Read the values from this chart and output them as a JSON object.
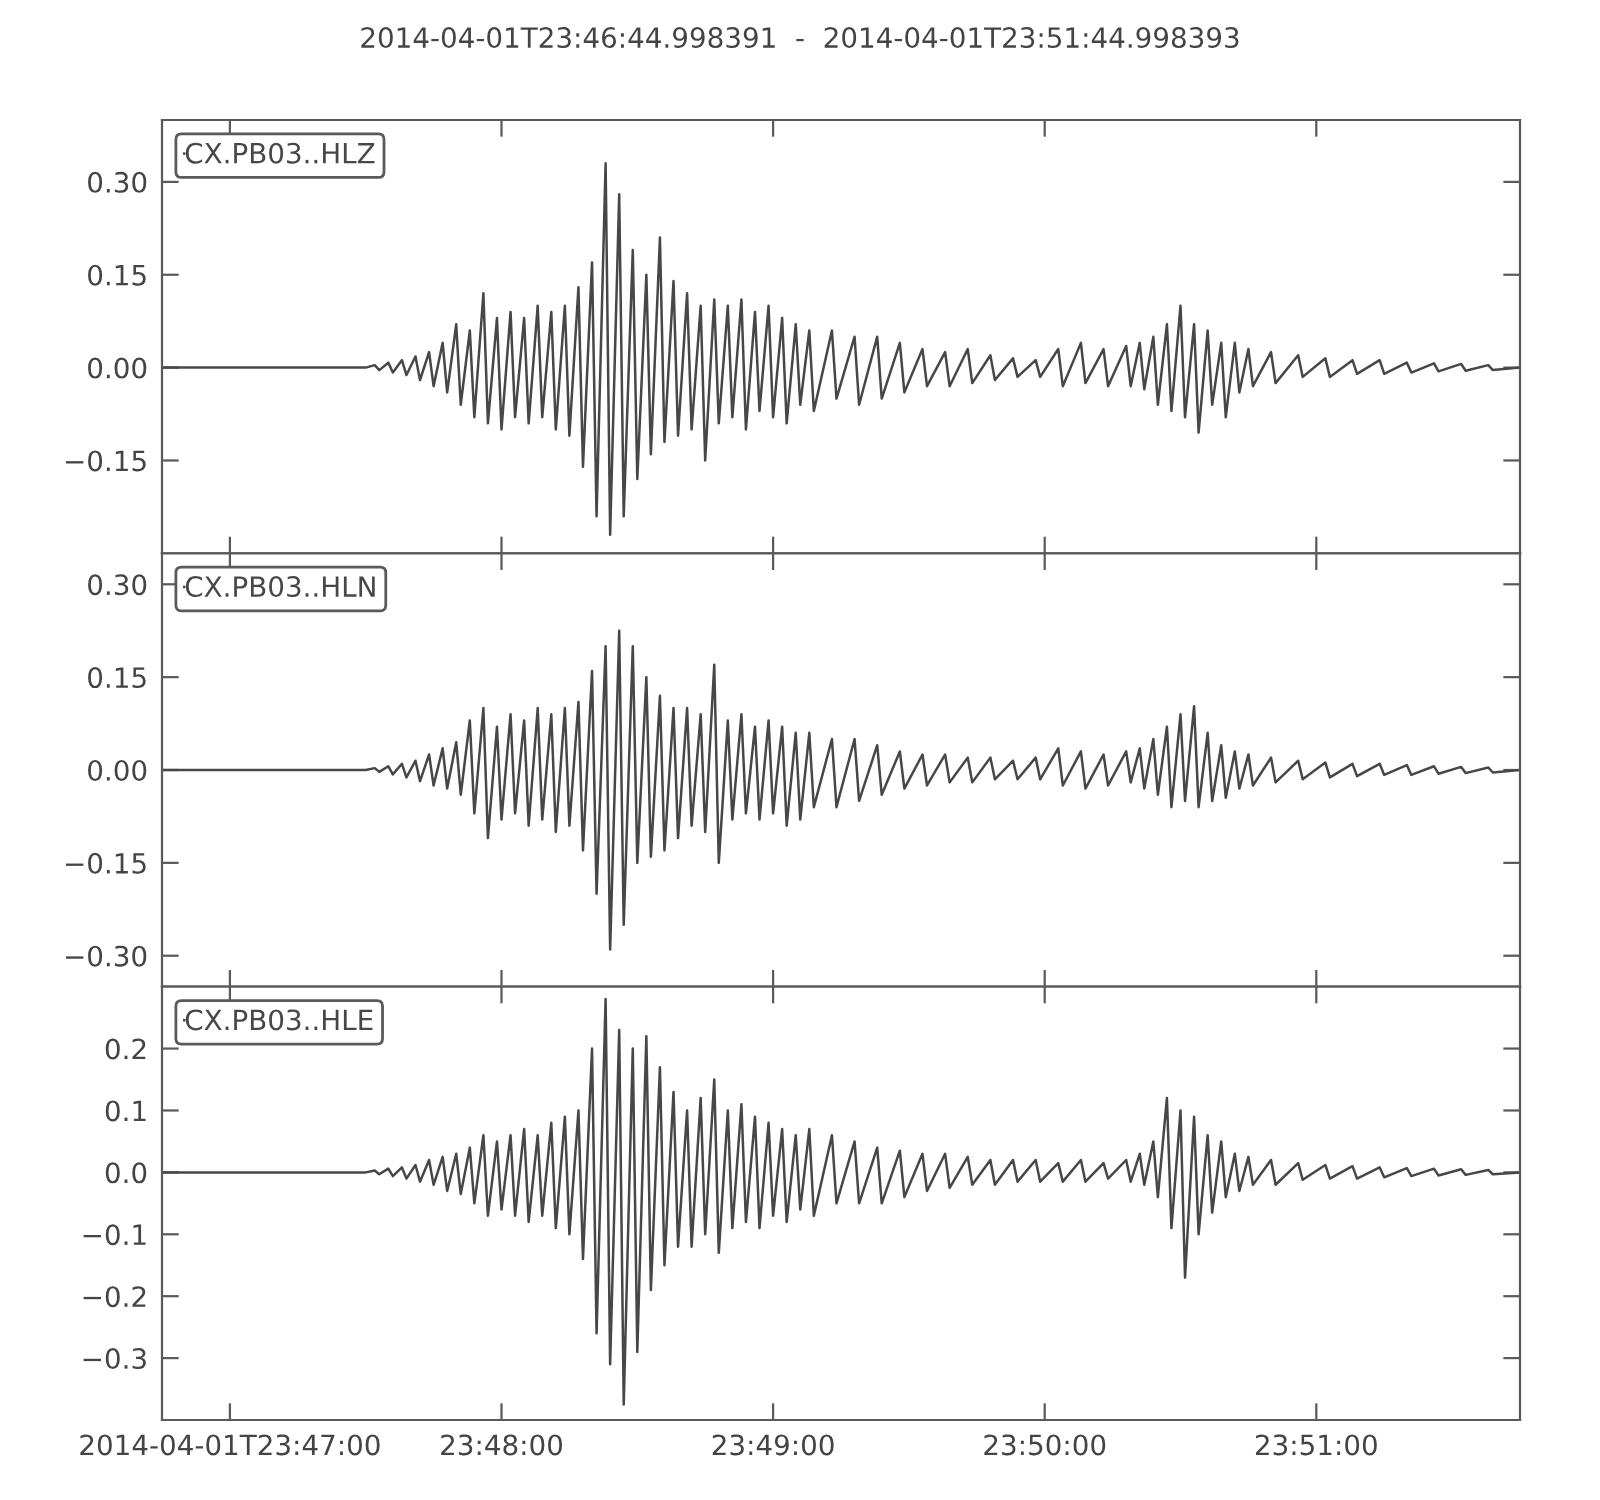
{
  "chart_data": [
    {
      "type": "line",
      "title": "2014-04-01T23:46:44.998391  -  2014-04-01T23:51:44.998393",
      "x": [
        "2014-04-01T23:46:45",
        "2014-04-01T23:47:30",
        "2014-04-01T23:47:32",
        "2014-04-01T23:47:33",
        "2014-04-01T23:47:35",
        "2014-04-01T23:47:36",
        "2014-04-01T23:47:38",
        "2014-04-01T23:47:39",
        "2014-04-01T23:47:41",
        "2014-04-01T23:47:42",
        "2014-04-01T23:47:44",
        "2014-04-01T23:47:45",
        "2014-04-01T23:47:47",
        "2014-04-01T23:47:48",
        "2014-04-01T23:47:50",
        "2014-04-01T23:47:51",
        "2014-04-01T23:47:53",
        "2014-04-01T23:47:54",
        "2014-04-01T23:47:56",
        "2014-04-01T23:47:57",
        "2014-04-01T23:47:59",
        "2014-04-01T23:48:00",
        "2014-04-01T23:48:02",
        "2014-04-01T23:48:03",
        "2014-04-01T23:48:05",
        "2014-04-01T23:48:06",
        "2014-04-01T23:48:08",
        "2014-04-01T23:48:09",
        "2014-04-01T23:48:11",
        "2014-04-01T23:48:12",
        "2014-04-01T23:48:14",
        "2014-04-01T23:48:15",
        "2014-04-01T23:48:17",
        "2014-04-01T23:48:18",
        "2014-04-01T23:48:20",
        "2014-04-01T23:48:21",
        "2014-04-01T23:48:23",
        "2014-04-01T23:48:24",
        "2014-04-01T23:48:26",
        "2014-04-01T23:48:27",
        "2014-04-01T23:48:29",
        "2014-04-01T23:48:30",
        "2014-04-01T23:48:32",
        "2014-04-01T23:48:33",
        "2014-04-01T23:48:35",
        "2014-04-01T23:48:36",
        "2014-04-01T23:48:38",
        "2014-04-01T23:48:39",
        "2014-04-01T23:48:41",
        "2014-04-01T23:48:42",
        "2014-04-01T23:48:44",
        "2014-04-01T23:48:45",
        "2014-04-01T23:48:47",
        "2014-04-01T23:48:48",
        "2014-04-01T23:48:50",
        "2014-04-01T23:48:51",
        "2014-04-01T23:48:53",
        "2014-04-01T23:48:54",
        "2014-04-01T23:48:56",
        "2014-04-01T23:48:57",
        "2014-04-01T23:48:59",
        "2014-04-01T23:49:00",
        "2014-04-01T23:49:02",
        "2014-04-01T23:49:03",
        "2014-04-01T23:49:05",
        "2014-04-01T23:49:06",
        "2014-04-01T23:49:08",
        "2014-04-01T23:49:09",
        "2014-04-01T23:49:13",
        "2014-04-01T23:49:14",
        "2014-04-01T23:49:18",
        "2014-04-01T23:49:19",
        "2014-04-01T23:49:23",
        "2014-04-01T23:49:24",
        "2014-04-01T23:49:28",
        "2014-04-01T23:49:29",
        "2014-04-01T23:49:33",
        "2014-04-01T23:49:34",
        "2014-04-01T23:49:38",
        "2014-04-01T23:49:39",
        "2014-04-01T23:49:43",
        "2014-04-01T23:49:44",
        "2014-04-01T23:49:48",
        "2014-04-01T23:49:49",
        "2014-04-01T23:49:53",
        "2014-04-01T23:49:54",
        "2014-04-01T23:49:58",
        "2014-04-01T23:49:59",
        "2014-04-01T23:50:03",
        "2014-04-01T23:50:04",
        "2014-04-01T23:50:08",
        "2014-04-01T23:50:09",
        "2014-04-01T23:50:13",
        "2014-04-01T23:50:14",
        "2014-04-01T23:50:18",
        "2014-04-01T23:50:19",
        "2014-04-01T23:50:21",
        "2014-04-01T23:50:22",
        "2014-04-01T23:50:24",
        "2014-04-01T23:50:25",
        "2014-04-01T23:50:27",
        "2014-04-01T23:50:28",
        "2014-04-01T23:50:30",
        "2014-04-01T23:50:31",
        "2014-04-01T23:50:33",
        "2014-04-01T23:50:34",
        "2014-04-01T23:50:36",
        "2014-04-01T23:50:37",
        "2014-04-01T23:50:39",
        "2014-04-01T23:50:40",
        "2014-04-01T23:50:42",
        "2014-04-01T23:50:43",
        "2014-04-01T23:50:45",
        "2014-04-01T23:50:46",
        "2014-04-01T23:50:50",
        "2014-04-01T23:50:51",
        "2014-04-01T23:50:56",
        "2014-04-01T23:50:57",
        "2014-04-01T23:51:02",
        "2014-04-01T23:51:03",
        "2014-04-01T23:51:08",
        "2014-04-01T23:51:09",
        "2014-04-01T23:51:14",
        "2014-04-01T23:51:15",
        "2014-04-01T23:51:20",
        "2014-04-01T23:51:21",
        "2014-04-01T23:51:26",
        "2014-04-01T23:51:27",
        "2014-04-01T23:51:32",
        "2014-04-01T23:51:33",
        "2014-04-01T23:51:38",
        "2014-04-01T23:51:39",
        "2014-04-01T23:51:45"
      ],
      "series": [
        {
          "name": "CX.PB03..HLZ",
          "color": "#474747",
          "values": [
            0,
            0,
            0.004,
            -0.004,
            0.008,
            -0.008,
            0.012,
            -0.012,
            0.018,
            -0.02,
            0.025,
            -0.03,
            0.04,
            -0.04,
            0.07,
            -0.06,
            0.06,
            -0.08,
            0.12,
            -0.09,
            0.08,
            -0.1,
            0.09,
            -0.08,
            0.08,
            -0.09,
            0.1,
            -0.08,
            0.09,
            -0.1,
            0.1,
            -0.11,
            0.13,
            -0.16,
            0.17,
            -0.24,
            0.33,
            -0.27,
            0.28,
            -0.24,
            0.19,
            -0.18,
            0.15,
            -0.14,
            0.21,
            -0.12,
            0.14,
            -0.11,
            0.12,
            -0.1,
            0.1,
            -0.15,
            0.11,
            -0.09,
            0.1,
            -0.08,
            0.11,
            -0.1,
            0.09,
            -0.07,
            0.1,
            -0.08,
            0.08,
            -0.09,
            0.07,
            -0.06,
            0.06,
            -0.07,
            0.06,
            -0.05,
            0.05,
            -0.06,
            0.05,
            -0.05,
            0.04,
            -0.04,
            0.03,
            -0.03,
            0.025,
            -0.03,
            0.03,
            -0.025,
            0.02,
            -0.02,
            0.015,
            -0.015,
            0.012,
            -0.015,
            0.03,
            -0.03,
            0.04,
            -0.025,
            0.03,
            -0.03,
            0.035,
            -0.03,
            0.04,
            -0.035,
            0.05,
            -0.06,
            0.07,
            -0.07,
            0.1,
            -0.08,
            0.07,
            -0.105,
            0.06,
            -0.06,
            0.04,
            -0.08,
            0.04,
            -0.04,
            0.03,
            -0.03,
            0.025,
            -0.025,
            0.02,
            -0.015,
            0.015,
            -0.015,
            0.012,
            -0.01,
            0.012,
            -0.01,
            0.008,
            -0.008,
            0.007,
            -0.006,
            0.006,
            -0.005,
            0.004,
            -0.004,
            0
          ]
        }
      ],
      "xlim": [
        "2014-04-01T23:46:45",
        "2014-04-01T23:51:45"
      ],
      "xticks": [
        {
          "value": "2014-04-01T23:47:00",
          "label": null
        },
        {
          "value": "2014-04-01T23:48:00",
          "label": null
        },
        {
          "value": "2014-04-01T23:49:00",
          "label": null
        },
        {
          "value": "2014-04-01T23:50:00",
          "label": null
        },
        {
          "value": "2014-04-01T23:51:00",
          "label": null
        }
      ],
      "ylim": [
        -0.3,
        0.4
      ],
      "yticks": [
        {
          "value": 0.3,
          "label": "0.30"
        },
        {
          "value": 0.15,
          "label": "0.15"
        },
        {
          "value": 0,
          "label": "0.00"
        },
        {
          "value": -0.15,
          "label": "−0.15"
        }
      ],
      "legend": "top left",
      "tick_labels": "y"
    },
    {
      "type": "line",
      "x": [
        "2014-04-01T23:46:45",
        "2014-04-01T23:47:30",
        "2014-04-01T23:47:32",
        "2014-04-01T23:47:33",
        "2014-04-01T23:47:35",
        "2014-04-01T23:47:36",
        "2014-04-01T23:47:38",
        "2014-04-01T23:47:39",
        "2014-04-01T23:47:41",
        "2014-04-01T23:47:42",
        "2014-04-01T23:47:44",
        "2014-04-01T23:47:45",
        "2014-04-01T23:47:47",
        "2014-04-01T23:47:48",
        "2014-04-01T23:47:50",
        "2014-04-01T23:47:51",
        "2014-04-01T23:47:53",
        "2014-04-01T23:47:54",
        "2014-04-01T23:47:56",
        "2014-04-01T23:47:57",
        "2014-04-01T23:47:59",
        "2014-04-01T23:48:00",
        "2014-04-01T23:48:02",
        "2014-04-01T23:48:03",
        "2014-04-01T23:48:05",
        "2014-04-01T23:48:06",
        "2014-04-01T23:48:08",
        "2014-04-01T23:48:09",
        "2014-04-01T23:48:11",
        "2014-04-01T23:48:12",
        "2014-04-01T23:48:14",
        "2014-04-01T23:48:15",
        "2014-04-01T23:48:17",
        "2014-04-01T23:48:18",
        "2014-04-01T23:48:20",
        "2014-04-01T23:48:21",
        "2014-04-01T23:48:23",
        "2014-04-01T23:48:24",
        "2014-04-01T23:48:26",
        "2014-04-01T23:48:27",
        "2014-04-01T23:48:29",
        "2014-04-01T23:48:30",
        "2014-04-01T23:48:32",
        "2014-04-01T23:48:33",
        "2014-04-01T23:48:35",
        "2014-04-01T23:48:36",
        "2014-04-01T23:48:38",
        "2014-04-01T23:48:39",
        "2014-04-01T23:48:41",
        "2014-04-01T23:48:42",
        "2014-04-01T23:48:44",
        "2014-04-01T23:48:45",
        "2014-04-01T23:48:47",
        "2014-04-01T23:48:48",
        "2014-04-01T23:48:50",
        "2014-04-01T23:48:51",
        "2014-04-01T23:48:53",
        "2014-04-01T23:48:54",
        "2014-04-01T23:48:56",
        "2014-04-01T23:48:57",
        "2014-04-01T23:48:59",
        "2014-04-01T23:49:00",
        "2014-04-01T23:49:02",
        "2014-04-01T23:49:03",
        "2014-04-01T23:49:05",
        "2014-04-01T23:49:06",
        "2014-04-01T23:49:08",
        "2014-04-01T23:49:09",
        "2014-04-01T23:49:13",
        "2014-04-01T23:49:14",
        "2014-04-01T23:49:18",
        "2014-04-01T23:49:19",
        "2014-04-01T23:49:23",
        "2014-04-01T23:49:24",
        "2014-04-01T23:49:28",
        "2014-04-01T23:49:29",
        "2014-04-01T23:49:33",
        "2014-04-01T23:49:34",
        "2014-04-01T23:49:38",
        "2014-04-01T23:49:39",
        "2014-04-01T23:49:43",
        "2014-04-01T23:49:44",
        "2014-04-01T23:49:48",
        "2014-04-01T23:49:49",
        "2014-04-01T23:49:53",
        "2014-04-01T23:49:54",
        "2014-04-01T23:49:58",
        "2014-04-01T23:49:59",
        "2014-04-01T23:50:03",
        "2014-04-01T23:50:04",
        "2014-04-01T23:50:08",
        "2014-04-01T23:50:09",
        "2014-04-01T23:50:13",
        "2014-04-01T23:50:14",
        "2014-04-01T23:50:18",
        "2014-04-01T23:50:19",
        "2014-04-01T23:50:21",
        "2014-04-01T23:50:22",
        "2014-04-01T23:50:24",
        "2014-04-01T23:50:25",
        "2014-04-01T23:50:27",
        "2014-04-01T23:50:28",
        "2014-04-01T23:50:30",
        "2014-04-01T23:50:31",
        "2014-04-01T23:50:33",
        "2014-04-01T23:50:34",
        "2014-04-01T23:50:36",
        "2014-04-01T23:50:37",
        "2014-04-01T23:50:39",
        "2014-04-01T23:50:40",
        "2014-04-01T23:50:42",
        "2014-04-01T23:50:43",
        "2014-04-01T23:50:45",
        "2014-04-01T23:50:46",
        "2014-04-01T23:50:50",
        "2014-04-01T23:50:51",
        "2014-04-01T23:50:56",
        "2014-04-01T23:50:57",
        "2014-04-01T23:51:02",
        "2014-04-01T23:51:03",
        "2014-04-01T23:51:08",
        "2014-04-01T23:51:09",
        "2014-04-01T23:51:14",
        "2014-04-01T23:51:15",
        "2014-04-01T23:51:20",
        "2014-04-01T23:51:21",
        "2014-04-01T23:51:26",
        "2014-04-01T23:51:27",
        "2014-04-01T23:51:32",
        "2014-04-01T23:51:33",
        "2014-04-01T23:51:38",
        "2014-04-01T23:51:39",
        "2014-04-01T23:51:45"
      ],
      "series": [
        {
          "name": "CX.PB03..HLN",
          "color": "#474747",
          "values": [
            0,
            0,
            0.003,
            -0.003,
            0.006,
            -0.007,
            0.01,
            -0.012,
            0.015,
            -0.018,
            0.025,
            -0.025,
            0.035,
            -0.03,
            0.045,
            -0.04,
            0.08,
            -0.07,
            0.1,
            -0.11,
            0.07,
            -0.08,
            0.09,
            -0.07,
            0.08,
            -0.09,
            0.1,
            -0.08,
            0.09,
            -0.1,
            0.1,
            -0.09,
            0.11,
            -0.13,
            0.16,
            -0.2,
            0.2,
            -0.29,
            0.225,
            -0.25,
            0.2,
            -0.15,
            0.15,
            -0.14,
            0.12,
            -0.13,
            0.1,
            -0.11,
            0.1,
            -0.09,
            0.09,
            -0.1,
            0.17,
            -0.15,
            0.08,
            -0.08,
            0.09,
            -0.07,
            0.07,
            -0.08,
            0.08,
            -0.07,
            0.07,
            -0.09,
            0.06,
            -0.08,
            0.06,
            -0.06,
            0.05,
            -0.06,
            0.05,
            -0.05,
            0.04,
            -0.04,
            0.03,
            -0.03,
            0.025,
            -0.025,
            0.025,
            -0.02,
            0.02,
            -0.02,
            0.02,
            -0.015,
            0.015,
            -0.015,
            0.02,
            -0.015,
            0.035,
            -0.025,
            0.03,
            -0.03,
            0.025,
            -0.025,
            0.03,
            -0.02,
            0.035,
            -0.03,
            0.05,
            -0.04,
            0.07,
            -0.06,
            0.09,
            -0.05,
            0.103,
            -0.06,
            0.06,
            -0.05,
            0.04,
            -0.045,
            0.03,
            -0.03,
            0.025,
            -0.025,
            0.02,
            -0.02,
            0.015,
            -0.015,
            0.012,
            -0.012,
            0.01,
            -0.01,
            0.01,
            -0.008,
            0.008,
            -0.008,
            0.006,
            -0.006,
            0.005,
            -0.005,
            0.004,
            -0.004,
            0
          ]
        }
      ],
      "xlim": [
        "2014-04-01T23:46:45",
        "2014-04-01T23:51:45"
      ],
      "xticks": [
        {
          "value": "2014-04-01T23:47:00",
          "label": null
        },
        {
          "value": "2014-04-01T23:48:00",
          "label": null
        },
        {
          "value": "2014-04-01T23:49:00",
          "label": null
        },
        {
          "value": "2014-04-01T23:50:00",
          "label": null
        },
        {
          "value": "2014-04-01T23:51:00",
          "label": null
        }
      ],
      "ylim": [
        -0.35,
        0.35
      ],
      "yticks": [
        {
          "value": 0.3,
          "label": "0.30"
        },
        {
          "value": 0.15,
          "label": "0.15"
        },
        {
          "value": 0,
          "label": "0.00"
        },
        {
          "value": -0.15,
          "label": "−0.15"
        },
        {
          "value": -0.3,
          "label": "−0.30"
        }
      ],
      "legend": "top left",
      "tick_labels": "y"
    },
    {
      "type": "line",
      "x": [
        "2014-04-01T23:46:45",
        "2014-04-01T23:47:30",
        "2014-04-01T23:47:32",
        "2014-04-01T23:47:33",
        "2014-04-01T23:47:35",
        "2014-04-01T23:47:36",
        "2014-04-01T23:47:38",
        "2014-04-01T23:47:39",
        "2014-04-01T23:47:41",
        "2014-04-01T23:47:42",
        "2014-04-01T23:47:44",
        "2014-04-01T23:47:45",
        "2014-04-01T23:47:47",
        "2014-04-01T23:47:48",
        "2014-04-01T23:47:50",
        "2014-04-01T23:47:51",
        "2014-04-01T23:47:53",
        "2014-04-01T23:47:54",
        "2014-04-01T23:47:56",
        "2014-04-01T23:47:57",
        "2014-04-01T23:47:59",
        "2014-04-01T23:48:00",
        "2014-04-01T23:48:02",
        "2014-04-01T23:48:03",
        "2014-04-01T23:48:05",
        "2014-04-01T23:48:06",
        "2014-04-01T23:48:08",
        "2014-04-01T23:48:09",
        "2014-04-01T23:48:11",
        "2014-04-01T23:48:12",
        "2014-04-01T23:48:14",
        "2014-04-01T23:48:15",
        "2014-04-01T23:48:17",
        "2014-04-01T23:48:18",
        "2014-04-01T23:48:20",
        "2014-04-01T23:48:21",
        "2014-04-01T23:48:23",
        "2014-04-01T23:48:24",
        "2014-04-01T23:48:26",
        "2014-04-01T23:48:27",
        "2014-04-01T23:48:29",
        "2014-04-01T23:48:30",
        "2014-04-01T23:48:32",
        "2014-04-01T23:48:33",
        "2014-04-01T23:48:35",
        "2014-04-01T23:48:36",
        "2014-04-01T23:48:38",
        "2014-04-01T23:48:39",
        "2014-04-01T23:48:41",
        "2014-04-01T23:48:42",
        "2014-04-01T23:48:44",
        "2014-04-01T23:48:45",
        "2014-04-01T23:48:47",
        "2014-04-01T23:48:48",
        "2014-04-01T23:48:50",
        "2014-04-01T23:48:51",
        "2014-04-01T23:48:53",
        "2014-04-01T23:48:54",
        "2014-04-01T23:48:56",
        "2014-04-01T23:48:57",
        "2014-04-01T23:48:59",
        "2014-04-01T23:49:00",
        "2014-04-01T23:49:02",
        "2014-04-01T23:49:03",
        "2014-04-01T23:49:05",
        "2014-04-01T23:49:06",
        "2014-04-01T23:49:08",
        "2014-04-01T23:49:09",
        "2014-04-01T23:49:13",
        "2014-04-01T23:49:14",
        "2014-04-01T23:49:18",
        "2014-04-01T23:49:19",
        "2014-04-01T23:49:23",
        "2014-04-01T23:49:24",
        "2014-04-01T23:49:28",
        "2014-04-01T23:49:29",
        "2014-04-01T23:49:33",
        "2014-04-01T23:49:34",
        "2014-04-01T23:49:38",
        "2014-04-01T23:49:39",
        "2014-04-01T23:49:43",
        "2014-04-01T23:49:44",
        "2014-04-01T23:49:48",
        "2014-04-01T23:49:49",
        "2014-04-01T23:49:53",
        "2014-04-01T23:49:54",
        "2014-04-01T23:49:58",
        "2014-04-01T23:49:59",
        "2014-04-01T23:50:03",
        "2014-04-01T23:50:04",
        "2014-04-01T23:50:08",
        "2014-04-01T23:50:09",
        "2014-04-01T23:50:13",
        "2014-04-01T23:50:14",
        "2014-04-01T23:50:18",
        "2014-04-01T23:50:19",
        "2014-04-01T23:50:21",
        "2014-04-01T23:50:22",
        "2014-04-01T23:50:24",
        "2014-04-01T23:50:25",
        "2014-04-01T23:50:27",
        "2014-04-01T23:50:28",
        "2014-04-01T23:50:30",
        "2014-04-01T23:50:31",
        "2014-04-01T23:50:33",
        "2014-04-01T23:50:34",
        "2014-04-01T23:50:36",
        "2014-04-01T23:50:37",
        "2014-04-01T23:50:39",
        "2014-04-01T23:50:40",
        "2014-04-01T23:50:42",
        "2014-04-01T23:50:43",
        "2014-04-01T23:50:45",
        "2014-04-01T23:50:46",
        "2014-04-01T23:50:50",
        "2014-04-01T23:50:51",
        "2014-04-01T23:50:56",
        "2014-04-01T23:50:57",
        "2014-04-01T23:51:02",
        "2014-04-01T23:51:03",
        "2014-04-01T23:51:08",
        "2014-04-01T23:51:09",
        "2014-04-01T23:51:14",
        "2014-04-01T23:51:15",
        "2014-04-01T23:51:20",
        "2014-04-01T23:51:21",
        "2014-04-01T23:51:26",
        "2014-04-01T23:51:27",
        "2014-04-01T23:51:32",
        "2014-04-01T23:51:33",
        "2014-04-01T23:51:38",
        "2014-04-01T23:51:39",
        "2014-04-01T23:51:45"
      ],
      "series": [
        {
          "name": "CX.PB03..HLE",
          "color": "#474747",
          "values": [
            0,
            0,
            0.003,
            -0.003,
            0.006,
            -0.006,
            0.008,
            -0.01,
            0.012,
            -0.015,
            0.02,
            -0.02,
            0.025,
            -0.03,
            0.03,
            -0.035,
            0.04,
            -0.05,
            0.06,
            -0.07,
            0.05,
            -0.06,
            0.06,
            -0.07,
            0.07,
            -0.08,
            0.06,
            -0.07,
            0.08,
            -0.09,
            0.09,
            -0.1,
            0.1,
            -0.14,
            0.2,
            -0.26,
            0.28,
            -0.31,
            0.23,
            -0.375,
            0.2,
            -0.29,
            0.22,
            -0.19,
            0.17,
            -0.15,
            0.13,
            -0.12,
            0.1,
            -0.12,
            0.12,
            -0.1,
            0.15,
            -0.13,
            0.1,
            -0.09,
            0.11,
            -0.08,
            0.09,
            -0.09,
            0.08,
            -0.07,
            0.07,
            -0.08,
            0.06,
            -0.06,
            0.07,
            -0.07,
            0.06,
            -0.05,
            0.05,
            -0.05,
            0.04,
            -0.05,
            0.035,
            -0.04,
            0.03,
            -0.03,
            0.03,
            -0.025,
            0.025,
            -0.02,
            0.02,
            -0.02,
            0.02,
            -0.015,
            0.02,
            -0.015,
            0.015,
            -0.015,
            0.02,
            -0.015,
            0.015,
            -0.01,
            0.02,
            -0.015,
            0.03,
            -0.02,
            0.05,
            -0.04,
            0.12,
            -0.09,
            0.1,
            -0.17,
            0.09,
            -0.1,
            0.06,
            -0.065,
            0.05,
            -0.04,
            0.03,
            -0.03,
            0.025,
            -0.02,
            0.02,
            -0.02,
            0.015,
            -0.012,
            0.012,
            -0.01,
            0.01,
            -0.01,
            0.008,
            -0.008,
            0.007,
            -0.006,
            0.006,
            -0.005,
            0.005,
            -0.004,
            0.004,
            -0.003,
            0
          ]
        }
      ],
      "xlim": [
        "2014-04-01T23:46:45",
        "2014-04-01T23:51:45"
      ],
      "xticks": [
        {
          "value": "2014-04-01T23:47:00",
          "label": "2014-04-01T23:47:00"
        },
        {
          "value": "2014-04-01T23:48:00",
          "label": "23:48:00"
        },
        {
          "value": "2014-04-01T23:49:00",
          "label": "23:49:00"
        },
        {
          "value": "2014-04-01T23:50:00",
          "label": "23:50:00"
        },
        {
          "value": "2014-04-01T23:51:00",
          "label": "23:51:00"
        }
      ],
      "ylim": [
        -0.4,
        0.3
      ],
      "yticks": [
        {
          "value": 0.2,
          "label": "0.2"
        },
        {
          "value": 0.1,
          "label": "0.1"
        },
        {
          "value": 0,
          "label": "0.0"
        },
        {
          "value": -0.1,
          "label": "−0.1"
        },
        {
          "value": -0.2,
          "label": "−0.2"
        },
        {
          "value": -0.3,
          "label": "−0.3"
        }
      ],
      "legend": "top left"
    }
  ]
}
